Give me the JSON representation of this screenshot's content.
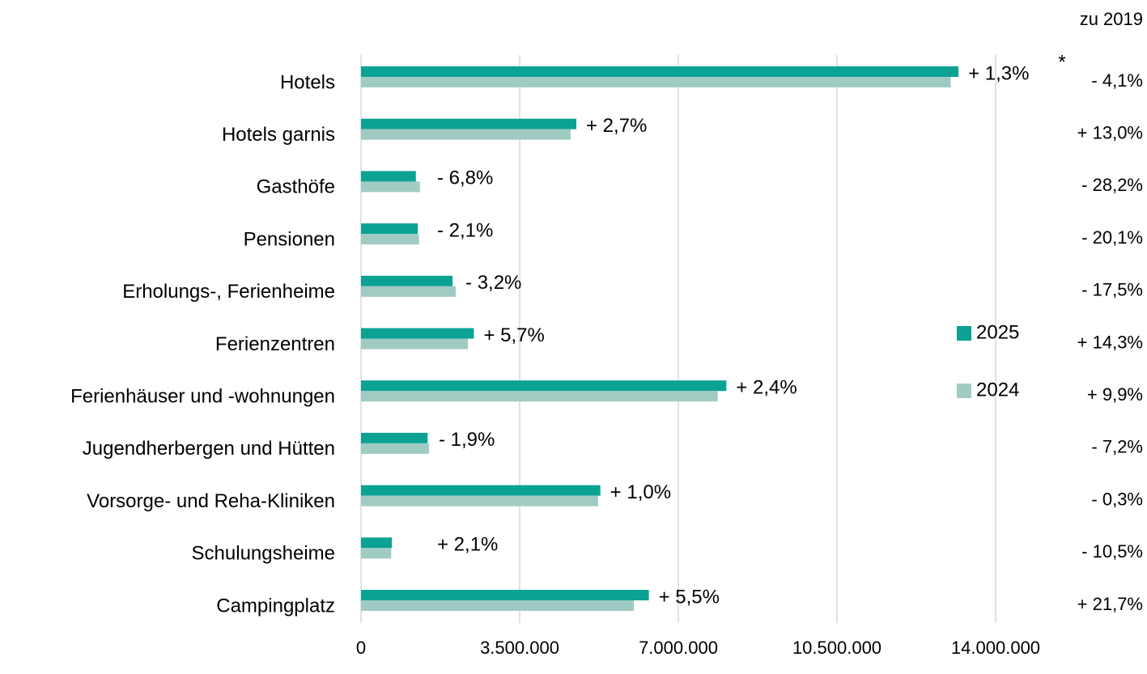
{
  "chart_data": {
    "type": "bar",
    "orientation": "horizontal",
    "categories": [
      "Hotels",
      "Hotels garnis",
      "Gasthöfe",
      "Pensionen",
      "Erholungs-, Ferienheime",
      "Ferienzentren",
      "Ferienhäuser und -wohnungen",
      "Jugendherbergen und Hütten",
      "Vorsorge- und Reha-Kliniken",
      "Schulungsheime",
      "Campingplatz"
    ],
    "series": [
      {
        "name": "2025",
        "color": "#0ba294",
        "values": [
          13180000,
          4750000,
          1210000,
          1250000,
          2020000,
          2490000,
          8060000,
          1470000,
          5280000,
          680000,
          6350000
        ]
      },
      {
        "name": "2024",
        "color": "#a0cbc3",
        "values": [
          13010000,
          4625000,
          1300000,
          1280000,
          2090000,
          2360000,
          7870000,
          1500000,
          5230000,
          665000,
          6020000
        ]
      }
    ],
    "change_labels": [
      "+ 1,3%",
      "+ 2,7%",
      "- 6,8%",
      "- 2,1%",
      "- 3,2%",
      "+ 5,7%",
      "+ 2,4%",
      "- 1,9%",
      "+ 1,0%",
      "+ 2,1%",
      "+ 5,5%"
    ],
    "change_2019_title": "zu 2019",
    "change_2019_labels": [
      "- 4,1%",
      "+ 13,0%",
      "- 28,2%",
      "- 20,1%",
      "- 17,5%",
      "+ 14,3%",
      "+ 9,9%",
      "- 7,2%",
      "- 0,3%",
      "- 10,5%",
      "+ 21,7%"
    ],
    "annotation": "*",
    "xlim": [
      0,
      14000000
    ],
    "xticks": [
      0,
      {
        "value": 3500000,
        "label": "3.500.000"
      },
      {
        "value": 7000000,
        "label": "7.000.000"
      },
      {
        "value": 10500000,
        "label": "10.500.000"
      },
      {
        "value": 14000000,
        "label": "14.000.000"
      }
    ],
    "grid": true,
    "legend": "right"
  }
}
